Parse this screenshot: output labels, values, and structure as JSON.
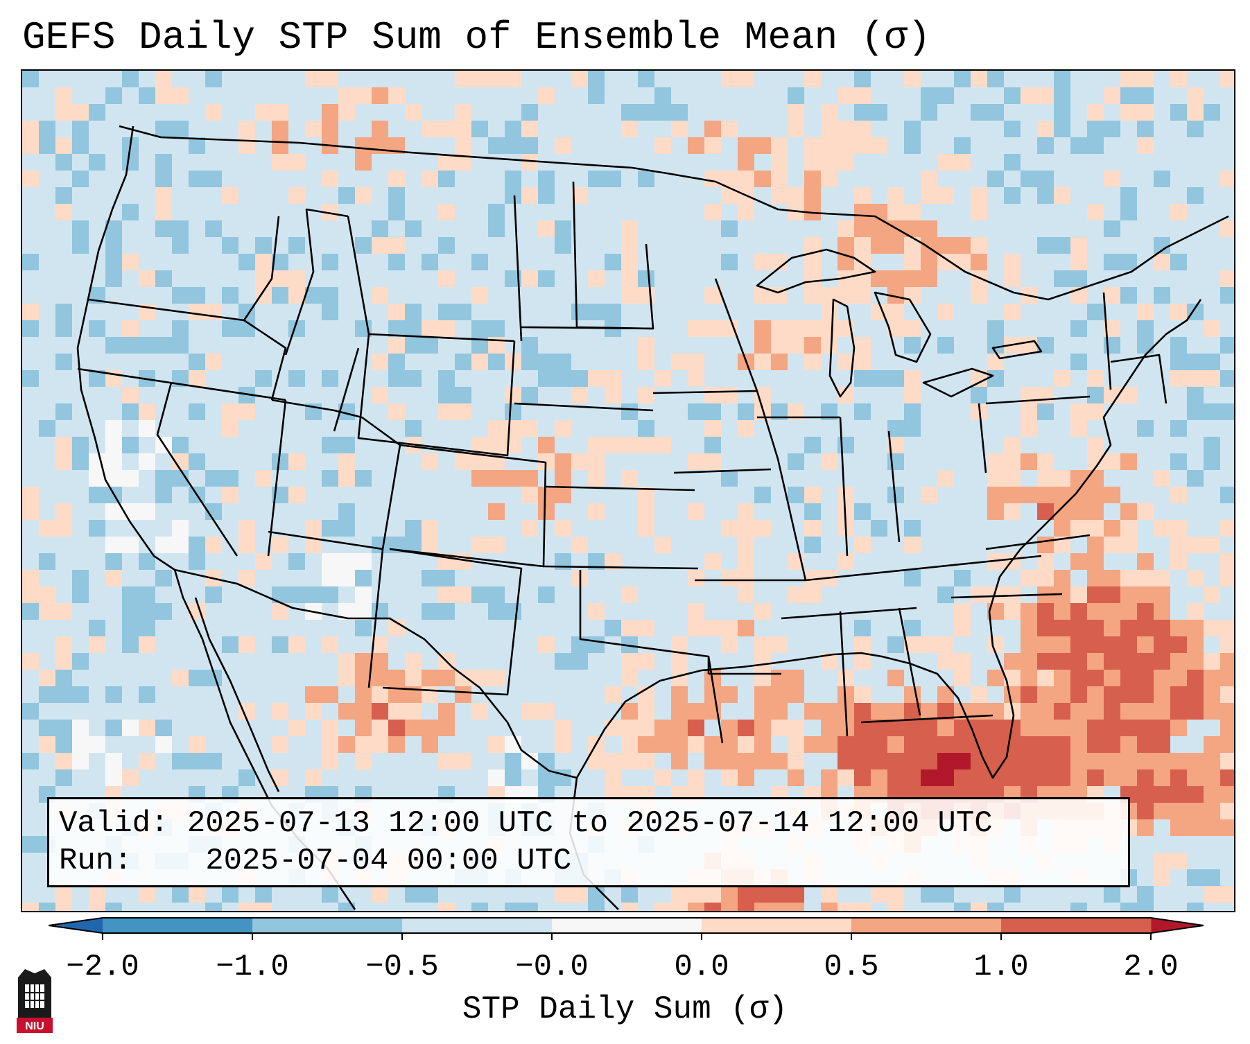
{
  "title": "GEFS Daily STP Sum of Ensemble Mean (σ)",
  "info": {
    "valid_label": "Valid:",
    "valid_value": "2025-07-13 12:00 UTC to 2025-07-14 12:00 UTC",
    "run_label": "Run:",
    "run_value": "2025-07-04 00:00 UTC"
  },
  "colorbar": {
    "label": "STP Daily Sum (σ)",
    "ticks": [
      "−2.0",
      "−1.0",
      "−0.5",
      "−0.0",
      "0.0",
      "0.5",
      "1.0",
      "2.0"
    ],
    "colors": [
      "#4393c3",
      "#92c5de",
      "#d1e5f0",
      "#f7f7f7",
      "#fddbc7",
      "#f4a582",
      "#d6604d"
    ],
    "under_color": "#2166ac",
    "over_color": "#b2182b"
  },
  "logo": {
    "text": "NIU"
  }
}
